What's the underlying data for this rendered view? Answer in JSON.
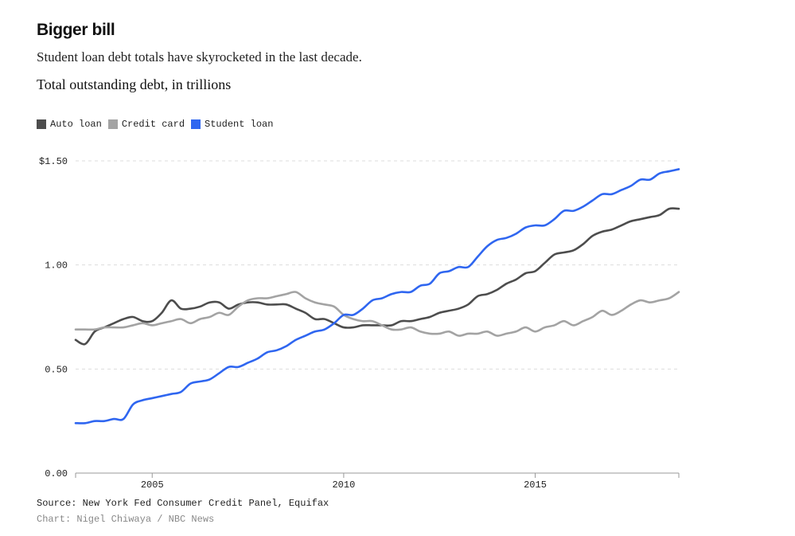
{
  "header": {
    "title": "Bigger bill",
    "subtitle": "Student loan debt totals have skyrocketed in the last decade.",
    "chart_heading": "Total outstanding debt, in trillions"
  },
  "footer": {
    "source": "Source: New York Fed Consumer Credit Panel, Equifax",
    "credit": "Chart: Nigel Chiwaya / NBC News"
  },
  "colors": {
    "auto": "#4d4d4d",
    "credit": "#a3a3a3",
    "student": "#2f66f0",
    "grid": "#dddddd",
    "axis": "#999999"
  },
  "chart_data": {
    "type": "line",
    "title": "Total outstanding debt, in trillions",
    "xlabel": "",
    "ylabel": "",
    "xlim": [
      2003.0,
      2018.75
    ],
    "ylim": [
      0,
      1.5
    ],
    "y_ticks": [
      0,
      0.5,
      1.0,
      1.5
    ],
    "y_tick_labels": [
      "0.00",
      "0.50",
      "1.00",
      "$1.50"
    ],
    "x_ticks": [
      2005,
      2010,
      2015
    ],
    "x_tick_labels": [
      "2005",
      "2010",
      "2015"
    ],
    "grid": "horizontal dashed",
    "legend_position": "top-left",
    "x": [
      2003.0,
      2003.25,
      2003.5,
      2003.75,
      2004.0,
      2004.25,
      2004.5,
      2004.75,
      2005.0,
      2005.25,
      2005.5,
      2005.75,
      2006.0,
      2006.25,
      2006.5,
      2006.75,
      2007.0,
      2007.25,
      2007.5,
      2007.75,
      2008.0,
      2008.25,
      2008.5,
      2008.75,
      2009.0,
      2009.25,
      2009.5,
      2009.75,
      2010.0,
      2010.25,
      2010.5,
      2010.75,
      2011.0,
      2011.25,
      2011.5,
      2011.75,
      2012.0,
      2012.25,
      2012.5,
      2012.75,
      2013.0,
      2013.25,
      2013.5,
      2013.75,
      2014.0,
      2014.25,
      2014.5,
      2014.75,
      2015.0,
      2015.25,
      2015.5,
      2015.75,
      2016.0,
      2016.25,
      2016.5,
      2016.75,
      2017.0,
      2017.25,
      2017.5,
      2017.75,
      2018.0,
      2018.25,
      2018.5,
      2018.75
    ],
    "series": [
      {
        "name": "Auto loan",
        "color": "#4d4d4d",
        "values": [
          0.64,
          0.62,
          0.68,
          0.7,
          0.72,
          0.74,
          0.75,
          0.73,
          0.73,
          0.77,
          0.83,
          0.79,
          0.79,
          0.8,
          0.82,
          0.82,
          0.79,
          0.81,
          0.82,
          0.82,
          0.81,
          0.81,
          0.81,
          0.79,
          0.77,
          0.74,
          0.74,
          0.72,
          0.7,
          0.7,
          0.71,
          0.71,
          0.71,
          0.71,
          0.73,
          0.73,
          0.74,
          0.75,
          0.77,
          0.78,
          0.79,
          0.81,
          0.85,
          0.86,
          0.88,
          0.91,
          0.93,
          0.96,
          0.97,
          1.01,
          1.05,
          1.06,
          1.07,
          1.1,
          1.14,
          1.16,
          1.17,
          1.19,
          1.21,
          1.22,
          1.23,
          1.24,
          1.27,
          1.27
        ]
      },
      {
        "name": "Credit card",
        "color": "#a3a3a3",
        "values": [
          0.69,
          0.69,
          0.69,
          0.7,
          0.7,
          0.7,
          0.71,
          0.72,
          0.71,
          0.72,
          0.73,
          0.74,
          0.72,
          0.74,
          0.75,
          0.77,
          0.76,
          0.8,
          0.83,
          0.84,
          0.84,
          0.85,
          0.86,
          0.87,
          0.84,
          0.82,
          0.81,
          0.8,
          0.76,
          0.74,
          0.73,
          0.73,
          0.71,
          0.69,
          0.69,
          0.7,
          0.68,
          0.67,
          0.67,
          0.68,
          0.66,
          0.67,
          0.67,
          0.68,
          0.66,
          0.67,
          0.68,
          0.7,
          0.68,
          0.7,
          0.71,
          0.73,
          0.71,
          0.73,
          0.75,
          0.78,
          0.76,
          0.78,
          0.81,
          0.83,
          0.82,
          0.83,
          0.84,
          0.87
        ]
      },
      {
        "name": "Student loan",
        "color": "#2f66f0",
        "values": [
          0.24,
          0.24,
          0.25,
          0.25,
          0.26,
          0.26,
          0.33,
          0.35,
          0.36,
          0.37,
          0.38,
          0.39,
          0.43,
          0.44,
          0.45,
          0.48,
          0.51,
          0.51,
          0.53,
          0.55,
          0.58,
          0.59,
          0.61,
          0.64,
          0.66,
          0.68,
          0.69,
          0.72,
          0.76,
          0.76,
          0.79,
          0.83,
          0.84,
          0.86,
          0.87,
          0.87,
          0.9,
          0.91,
          0.96,
          0.97,
          0.99,
          0.99,
          1.04,
          1.09,
          1.12,
          1.13,
          1.15,
          1.18,
          1.19,
          1.19,
          1.22,
          1.26,
          1.26,
          1.28,
          1.31,
          1.34,
          1.34,
          1.36,
          1.38,
          1.41,
          1.41,
          1.44,
          1.45,
          1.46
        ]
      }
    ]
  }
}
